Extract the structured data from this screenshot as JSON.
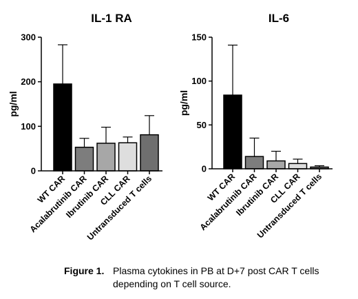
{
  "chart_data": [
    {
      "type": "bar",
      "title": "IL-1 RA",
      "ylabel": "pg/ml",
      "xlabel": "",
      "ylim": [
        0,
        300
      ],
      "yticks": [
        0,
        100,
        200,
        300
      ],
      "categories": [
        "WT CAR",
        "Acalabrutinib CAR",
        "Ibrutinib CAR",
        "CLL CAR",
        "Untransduced T cells"
      ],
      "values": [
        195,
        53,
        62,
        63,
        81
      ],
      "error_upper": [
        283,
        73,
        98,
        76,
        124
      ],
      "colors": [
        "#000000",
        "#7d7d7d",
        "#a7a7a7",
        "#dedede",
        "#6f6f6f"
      ],
      "grid": false
    },
    {
      "type": "bar",
      "title": "IL-6",
      "ylabel": "pg/ml",
      "xlabel": "",
      "ylim": [
        0,
        150
      ],
      "yticks": [
        0,
        50,
        100,
        150
      ],
      "categories": [
        "WT CAR",
        "Acalabrutinib CAR",
        "Ibrutinib CAR",
        "CLL CAR",
        "Untransduced T cells"
      ],
      "values": [
        84,
        14,
        9,
        6,
        2
      ],
      "error_upper": [
        141,
        35,
        20,
        11,
        3.5
      ],
      "colors": [
        "#000000",
        "#7d7d7d",
        "#a7a7a7",
        "#dedede",
        "#6f6f6f"
      ],
      "grid": false
    }
  ],
  "caption": {
    "label": "Figure 1.",
    "text": "Plasma cytokines in PB at D+7 post CAR T cells depending on T cell source."
  }
}
